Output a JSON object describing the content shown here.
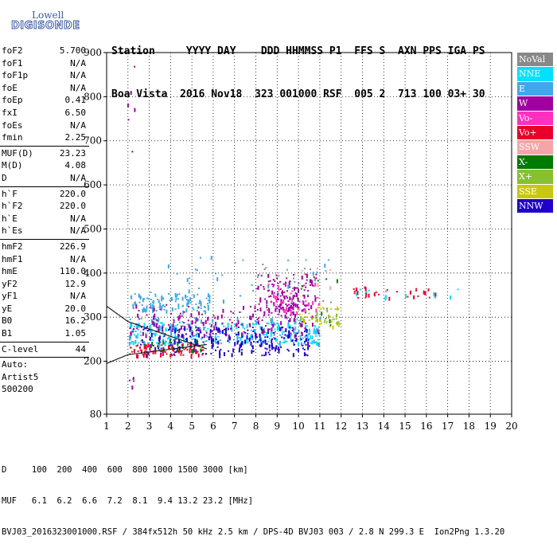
{
  "logo": {
    "line1": "Lowell",
    "line2": "DIGISONDE"
  },
  "header": {
    "row1": "Station     YYYY DAY    DDD HHMMSS P1  FFS S  AXN PPS IGA PS",
    "row2": "Boa Vista  2016 Nov18  323 001000 RSF  005 2  713 100 03+ 30"
  },
  "sidebar": {
    "group1": [
      {
        "label": "foF2",
        "value": "5.700"
      },
      {
        "label": "foF1",
        "value": "N/A"
      },
      {
        "label": "foF1p",
        "value": "N/A"
      },
      {
        "label": "foE",
        "value": "N/A"
      },
      {
        "label": "foEp",
        "value": "0.41"
      },
      {
        "label": "fxI",
        "value": "6.50"
      },
      {
        "label": "foEs",
        "value": "N/A"
      },
      {
        "label": "fmin",
        "value": "2.25"
      }
    ],
    "group2": [
      {
        "label": "MUF(D)",
        "value": "23.23"
      },
      {
        "label": "M(D)",
        "value": "4.08"
      },
      {
        "label": "D",
        "value": "N/A"
      }
    ],
    "group3": [
      {
        "label": "h`F",
        "value": "220.0"
      },
      {
        "label": "h`F2",
        "value": "220.0"
      },
      {
        "label": "h`E",
        "value": "N/A"
      },
      {
        "label": "h`Es",
        "value": "N/A"
      }
    ],
    "group4": [
      {
        "label": "hmF2",
        "value": "226.9"
      },
      {
        "label": "hmF1",
        "value": "N/A"
      },
      {
        "label": "hmE",
        "value": "110.0"
      },
      {
        "label": "yF2",
        "value": "12.9"
      },
      {
        "label": "yF1",
        "value": "N/A"
      },
      {
        "label": "yE",
        "value": "20.0"
      },
      {
        "label": "B0",
        "value": "16.2"
      },
      {
        "label": "B1",
        "value": "1.05"
      }
    ],
    "group5": [
      {
        "label": "C-level",
        "value": "44"
      }
    ],
    "auto": [
      "Auto:",
      "Artist5",
      "500200"
    ]
  },
  "legend": [
    {
      "name": "NoVal",
      "color": "#888888"
    },
    {
      "name": "NNE",
      "color": "#00e0ff"
    },
    {
      "name": "E",
      "color": "#3fa8ea"
    },
    {
      "name": "W",
      "color": "#a000a0"
    },
    {
      "name": "Vo-",
      "color": "#ff30c0"
    },
    {
      "name": "Vo+",
      "color": "#e8002a"
    },
    {
      "name": "SSW",
      "color": "#f4a6a6"
    },
    {
      "name": "X-",
      "color": "#007a00"
    },
    {
      "name": "X+",
      "color": "#88c030"
    },
    {
      "name": "SSE",
      "color": "#c8c810"
    },
    {
      "name": "NNW",
      "color": "#2000c8"
    }
  ],
  "footer": {
    "row1": "D     100  200  400  600  800 1000 1500 3000 [km]",
    "row2": "MUF   6.1  6.2  6.6  7.2  8.1  9.4 13.2 23.2 [MHz]",
    "row3": "BVJ03_2016323001000.RSF / 384fx512h 50 kHz 2.5 km / DPS-4D BVJ03 003 / 2.8 N 299.3 E  Ion2Png 1.3.20"
  },
  "chart_data": {
    "type": "scatter",
    "xlim": [
      1,
      20
    ],
    "ylim": [
      80,
      900
    ],
    "x_ticks": [
      1,
      2,
      3,
      4,
      5,
      6,
      7,
      8,
      9,
      10,
      11,
      12,
      13,
      14,
      15,
      16,
      17,
      18,
      19,
      20
    ],
    "y_ticks": [
      80,
      200,
      300,
      400,
      500,
      600,
      700,
      800,
      900
    ],
    "grid": true,
    "legend_position": "right",
    "series": [
      {
        "name": "E",
        "clusters": [
          {
            "x": [
              2.1,
              5.8
            ],
            "y": [
              315,
              355
            ],
            "n": 110
          },
          {
            "x": [
              2.0,
              11.0
            ],
            "y": [
              240,
              300
            ],
            "n": 220
          },
          {
            "x": [
              3.0,
              11.5
            ],
            "y": [
              330,
              440
            ],
            "n": 40
          }
        ]
      },
      {
        "name": "NNE",
        "clusters": [
          {
            "x": [
              2.0,
              11.0
            ],
            "y": [
              240,
              290
            ],
            "n": 200
          },
          {
            "x": [
              12.5,
              17.5
            ],
            "y": [
              345,
              365
            ],
            "n": 12
          }
        ]
      },
      {
        "name": "W",
        "clusters": [
          {
            "x": [
              2.0,
              11.0
            ],
            "y": [
              260,
              330
            ],
            "n": 160
          },
          {
            "x": [
              8.0,
              10.8
            ],
            "y": [
              310,
              400
            ],
            "n": 150
          },
          {
            "x": [
              1.8,
              2.3
            ],
            "y": [
              650,
              880
            ],
            "n": 6
          },
          {
            "x": [
              2.0,
              2.3
            ],
            "y": [
              140,
              170
            ],
            "n": 5
          }
        ]
      },
      {
        "name": "NNW",
        "clusters": [
          {
            "x": [
              2.5,
              10.5
            ],
            "y": [
              215,
              280
            ],
            "n": 240
          }
        ]
      },
      {
        "name": "Vo+",
        "clusters": [
          {
            "x": [
              2.0,
              5.5
            ],
            "y": [
              215,
              240
            ],
            "n": 80
          },
          {
            "x": [
              12.5,
              16.5
            ],
            "y": [
              345,
              370
            ],
            "n": 30
          }
        ]
      },
      {
        "name": "Vo-",
        "clusters": [
          {
            "x": [
              8.5,
              11.0
            ],
            "y": [
              310,
              380
            ],
            "n": 40
          }
        ]
      },
      {
        "name": "SSE",
        "clusters": [
          {
            "x": [
              10.0,
              12.0
            ],
            "y": [
              280,
              330
            ],
            "n": 35
          }
        ]
      },
      {
        "name": "X+",
        "clusters": [
          {
            "x": [
              10.0,
              11.8
            ],
            "y": [
              290,
              320
            ],
            "n": 15
          }
        ]
      },
      {
        "name": "X-",
        "clusters": [
          {
            "x": [
              9.5,
              12.0
            ],
            "y": [
              280,
              400
            ],
            "n": 10
          },
          {
            "x": [
              2.5,
              5.5
            ],
            "y": [
              225,
              250
            ],
            "n": 20
          }
        ]
      },
      {
        "name": "SSW",
        "clusters": [
          {
            "x": [
              10.0,
              11.5
            ],
            "y": [
              370,
              420
            ],
            "n": 6
          }
        ]
      },
      {
        "name": "NoVal",
        "clusters": [
          {
            "x": [
              8.0,
              11.5
            ],
            "y": [
              290,
              440
            ],
            "n": 15
          }
        ]
      }
    ],
    "profile_lines": [
      {
        "x": [
          1.0,
          2.0,
          5.7
        ],
        "y": [
          195,
          215,
          238
        ]
      },
      {
        "x": [
          1.0,
          2.0,
          5.7
        ],
        "y": [
          325,
          290,
          228
        ]
      }
    ]
  }
}
